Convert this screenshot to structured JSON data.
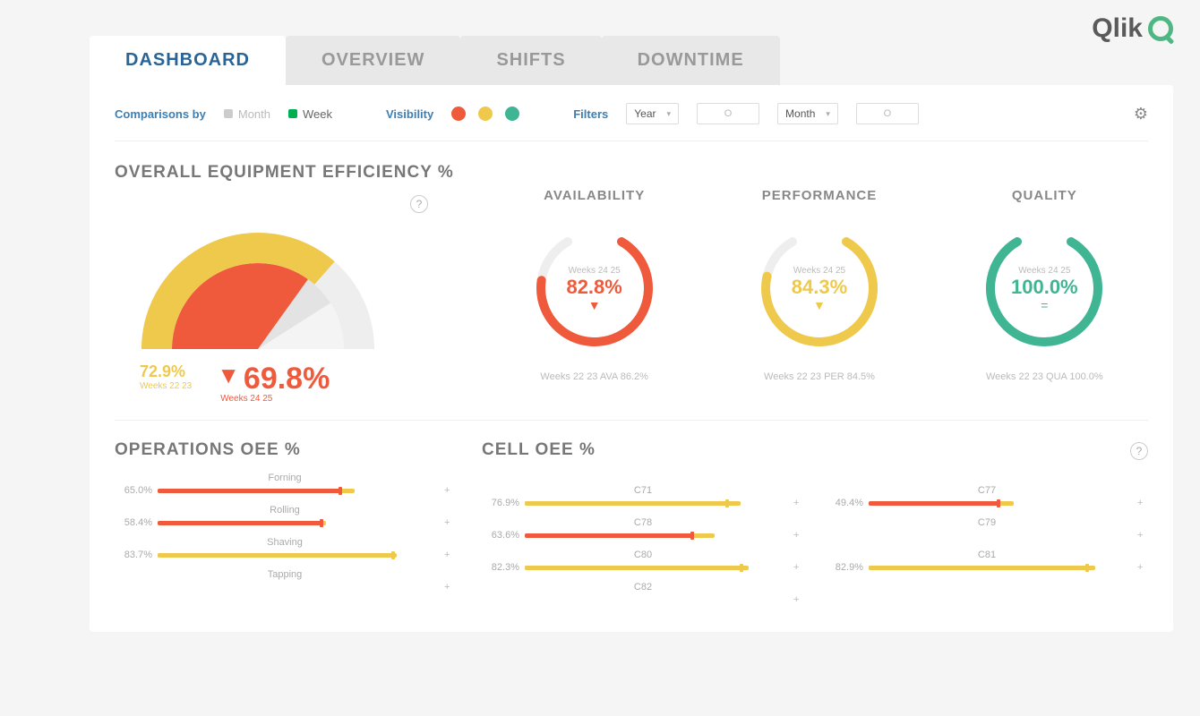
{
  "brand": {
    "name": "Qlik"
  },
  "tabs": [
    {
      "label": "DASHBOARD",
      "active": true
    },
    {
      "label": "OVERVIEW",
      "active": false
    },
    {
      "label": "SHIFTS",
      "active": false
    },
    {
      "label": "DOWNTIME",
      "active": false
    }
  ],
  "controls": {
    "comparisons_label": "Comparisons by",
    "month_label": "Month",
    "week_label": "Week",
    "selected": "week",
    "visibility_label": "Visibility",
    "visibility_colors": [
      "#f05a3c",
      "#efc94c",
      "#3fb593"
    ],
    "filters_label": "Filters",
    "filter_year_label": "Year",
    "filter_month_label": "Month",
    "filter_placeholder": "O"
  },
  "colors": {
    "red": "#f05a3c",
    "yellow": "#efc94c",
    "green": "#3fb593",
    "silver": "#e8e8e8",
    "light": "#f4f4f4",
    "text_muted": "#bbbbbb",
    "text_head": "#777777"
  },
  "oee": {
    "title": "OVERALL EQUIPMENT EFFICIENCY %",
    "gauge": {
      "type": "half_donut",
      "rings": [
        {
          "color": "#efc94c",
          "percent": 72.9,
          "radius": 130,
          "width": 34
        },
        {
          "color": "#f05a3c",
          "percent": 69.8,
          "radius": 96,
          "width": 96
        }
      ],
      "track_color": "#eeeeee",
      "silver_wedge_color": "#e3e3e3",
      "silver_wedge_start_pct": 69.8,
      "silver_wedge_end_pct": 82
    },
    "prev": {
      "value": "72.9%",
      "label": "Weeks 22 23"
    },
    "current": {
      "value": "69.8%",
      "label": "Weeks 24 25",
      "direction": "down"
    }
  },
  "metrics": [
    {
      "title": "AVAILABILITY",
      "value": "82.8%",
      "pct": 82.8,
      "color": "#f05a3c",
      "weeks": "Weeks 24 25",
      "indicator": "down",
      "footer": "Weeks 22 23 AVA 86.2%"
    },
    {
      "title": "PERFORMANCE",
      "value": "84.3%",
      "pct": 84.3,
      "color": "#efc94c",
      "weeks": "Weeks 24 25",
      "indicator": "down",
      "footer": "Weeks 22 23 PER 84.5%"
    },
    {
      "title": "QUALITY",
      "value": "100.0%",
      "pct": 100.0,
      "color": "#3fb593",
      "weeks": "Weeks 24 25",
      "indicator": "equal",
      "footer": "Weeks 22 23 QUA 100.0%"
    }
  ],
  "operations": {
    "title": "OPERATIONS OEE %",
    "bars": [
      {
        "label": "Forning",
        "pct": 65.0,
        "color_main": "#f05a3c",
        "color_back": "#efc94c",
        "back_pct": 70
      },
      {
        "label": "Rolling",
        "pct": 58.4,
        "color_main": "#f05a3c",
        "color_back": "#efc94c",
        "back_pct": 60
      },
      {
        "label": "Shaving",
        "pct": 83.7,
        "color_main": "#efc94c",
        "color_back": "#efc94c",
        "back_pct": 85
      },
      {
        "label": "Tapping",
        "pct": 0,
        "color_main": "#efc94c",
        "color_back": "#efc94c",
        "back_pct": 0
      }
    ]
  },
  "cells": {
    "title": "CELL OEE %",
    "left": [
      {
        "label": "C71",
        "pct": 76.9,
        "color_main": "#efc94c",
        "color_back": "#efc94c",
        "back_pct": 82
      },
      {
        "label": "C78",
        "pct": 63.6,
        "color_main": "#f05a3c",
        "color_back": "#efc94c",
        "back_pct": 72
      },
      {
        "label": "C80",
        "pct": 82.3,
        "color_main": "#efc94c",
        "color_back": "#efc94c",
        "back_pct": 85
      },
      {
        "label": "C82",
        "pct": 0,
        "color_main": "#efc94c",
        "color_back": "#efc94c",
        "back_pct": 0
      }
    ],
    "right": [
      {
        "label": "C77",
        "pct": 49.4,
        "color_main": "#f05a3c",
        "color_back": "#efc94c",
        "back_pct": 55
      },
      {
        "label": "C79",
        "pct": 0,
        "color_main": "#efc94c",
        "color_back": "#efc94c",
        "back_pct": 0
      },
      {
        "label": "C81",
        "pct": 82.9,
        "color_main": "#efc94c",
        "color_back": "#efc94c",
        "back_pct": 86
      }
    ]
  }
}
